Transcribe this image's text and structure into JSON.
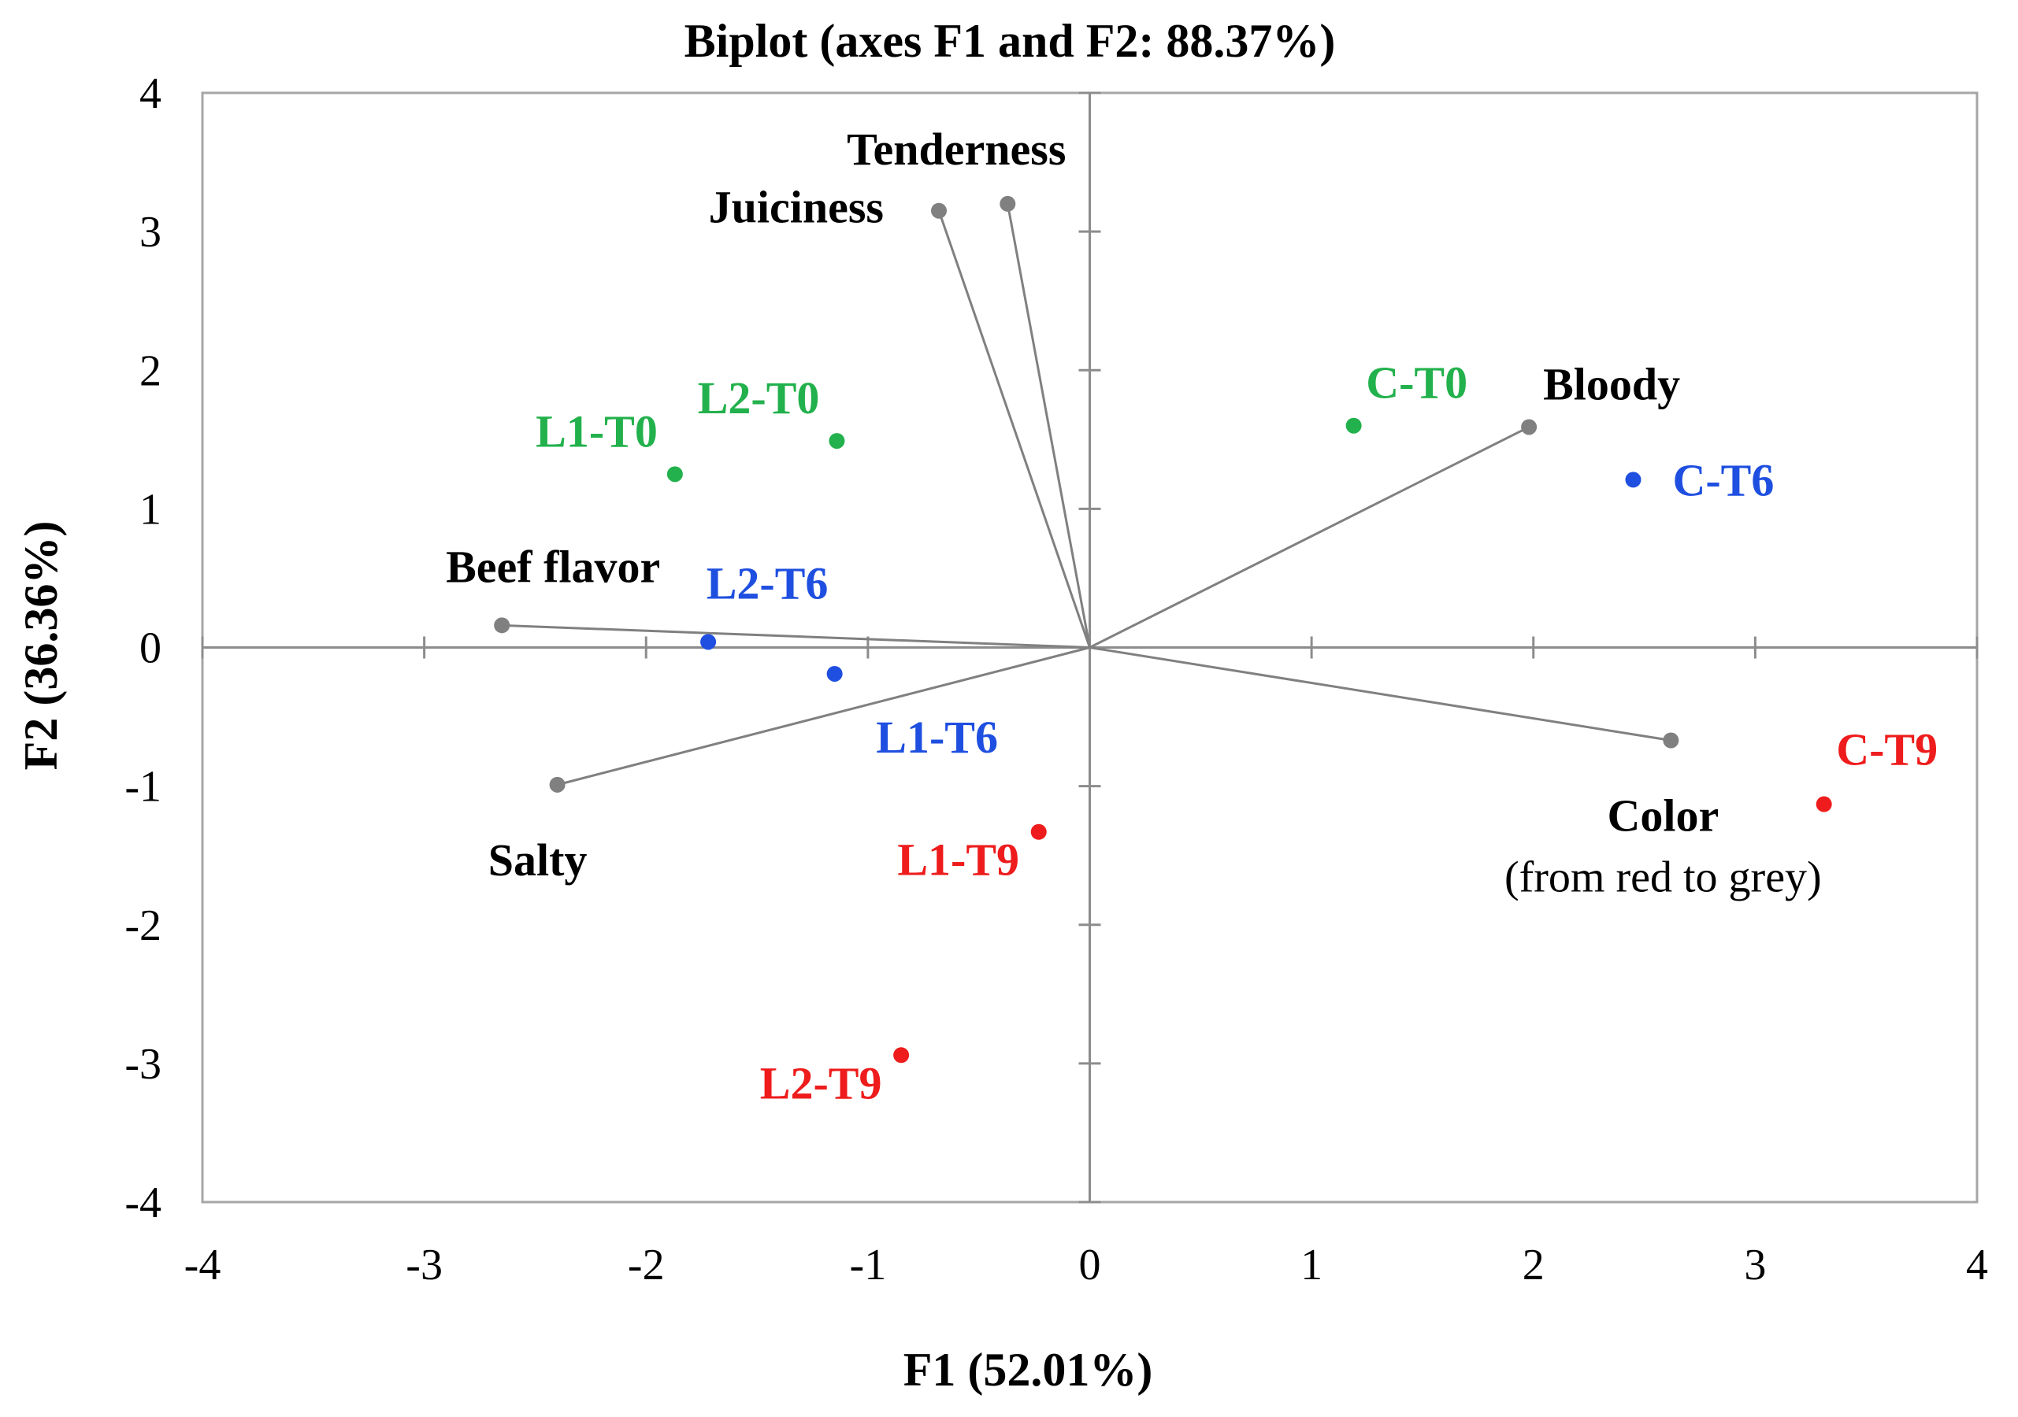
{
  "chart_data": {
    "type": "scatter",
    "subtype": "biplot",
    "title": "Biplot (axes F1 and F2: 88.37%)",
    "xlabel": "F1 (52.01%)",
    "ylabel": "F2 (36.36%)",
    "xlim": [
      -4,
      4
    ],
    "ylim": [
      -4,
      4
    ],
    "xticks": [
      "-4",
      "-3",
      "-2",
      "-1",
      "0",
      "1",
      "2",
      "3",
      "4"
    ],
    "yticks": [
      "-4",
      "-3",
      "-2",
      "-1",
      "0",
      "1",
      "2",
      "3",
      "4"
    ],
    "grid": false,
    "vector_color": "#808080",
    "variables": [
      {
        "name": "Tenderness",
        "x": -0.37,
        "y": 3.2
      },
      {
        "name": "Juiciness",
        "x": -0.68,
        "y": 3.15
      },
      {
        "name": "Bloody",
        "x": 1.98,
        "y": 1.59
      },
      {
        "name": "Beef flavor",
        "x": -2.65,
        "y": 0.16
      },
      {
        "name": "Salty",
        "x": -2.4,
        "y": -0.99
      },
      {
        "name": "Color",
        "sub": "(from red to grey)",
        "x": 2.62,
        "y": -0.67
      }
    ],
    "observations": [
      {
        "name": "L1-T0",
        "x": -1.87,
        "y": 1.25,
        "group": "T0",
        "color": "#22b14c"
      },
      {
        "name": "L2-T0",
        "x": -1.14,
        "y": 1.49,
        "group": "T0",
        "color": "#22b14c"
      },
      {
        "name": "C-T0",
        "x": 1.19,
        "y": 1.6,
        "group": "T0",
        "color": "#22b14c"
      },
      {
        "name": "L2-T6",
        "x": -1.72,
        "y": 0.04,
        "group": "T6",
        "color": "#1f4fe0"
      },
      {
        "name": "L1-T6",
        "x": -1.15,
        "y": -0.19,
        "group": "T6",
        "color": "#1f4fe0"
      },
      {
        "name": "C-T6",
        "x": 2.45,
        "y": 1.21,
        "group": "T6",
        "color": "#1f4fe0"
      },
      {
        "name": "L1-T9",
        "x": -0.23,
        "y": -1.33,
        "group": "T9",
        "color": "#ee1c1c"
      },
      {
        "name": "L2-T9",
        "x": -0.85,
        "y": -2.94,
        "group": "T9",
        "color": "#ee1c1c"
      },
      {
        "name": "C-T9",
        "x": 3.31,
        "y": -1.13,
        "group": "T9",
        "color": "#ee1c1c"
      }
    ]
  }
}
